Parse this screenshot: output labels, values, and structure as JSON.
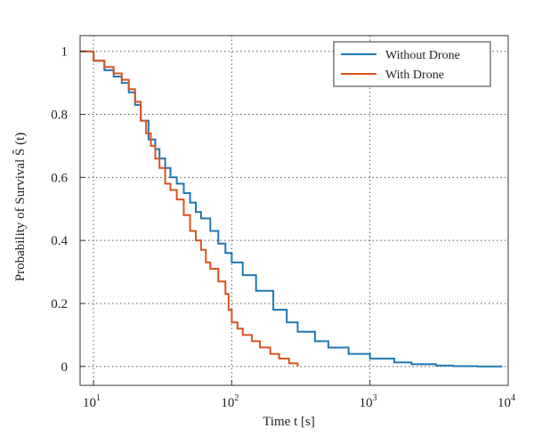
{
  "chart_data": {
    "type": "line",
    "step": true,
    "xscale": "log",
    "xlabel": "Time t [s]",
    "ylabel": "Probability of Survival Ŝ (t)",
    "xlim": [
      8,
      10000
    ],
    "ylim": [
      -0.06,
      1.05
    ],
    "xticks": [
      {
        "value": 10,
        "base": "10",
        "exp": "1"
      },
      {
        "value": 100,
        "base": "10",
        "exp": "2"
      },
      {
        "value": 1000,
        "base": "10",
        "exp": "3"
      },
      {
        "value": 10000,
        "base": "10",
        "exp": "4"
      }
    ],
    "yticks": [
      {
        "value": 0,
        "label": "0"
      },
      {
        "value": 0.2,
        "label": "0.2"
      },
      {
        "value": 0.4,
        "label": "0.4"
      },
      {
        "value": 0.6,
        "label": "0.6"
      },
      {
        "value": 0.8,
        "label": "0.8"
      },
      {
        "value": 1,
        "label": "1"
      }
    ],
    "grid": true,
    "legend_position": "top-right",
    "series": [
      {
        "name": "Without Drone",
        "color": "#1f77b4",
        "x": [
          8,
          10,
          12,
          14,
          16,
          18,
          20,
          22,
          25,
          28,
          30,
          33,
          36,
          40,
          45,
          50,
          55,
          60,
          70,
          80,
          90,
          100,
          120,
          150,
          200,
          250,
          300,
          400,
          500,
          700,
          1000,
          1500,
          2000,
          3000,
          4000,
          6000,
          9000
        ],
        "y": [
          1.0,
          0.97,
          0.94,
          0.92,
          0.9,
          0.87,
          0.83,
          0.78,
          0.72,
          0.69,
          0.66,
          0.63,
          0.6,
          0.58,
          0.55,
          0.52,
          0.49,
          0.47,
          0.43,
          0.39,
          0.36,
          0.33,
          0.29,
          0.24,
          0.18,
          0.14,
          0.11,
          0.08,
          0.06,
          0.04,
          0.025,
          0.013,
          0.007,
          0.003,
          0.001,
          0.0003,
          0
        ]
      },
      {
        "name": "With Drone",
        "color": "#d9541e",
        "x": [
          8,
          10,
          12,
          14,
          16,
          18,
          20,
          22,
          24,
          26,
          28,
          30,
          33,
          36,
          40,
          45,
          50,
          55,
          60,
          65,
          70,
          80,
          90,
          95,
          100,
          110,
          120,
          140,
          160,
          190,
          220,
          260,
          300
        ],
        "y": [
          1.0,
          0.97,
          0.95,
          0.93,
          0.91,
          0.88,
          0.84,
          0.78,
          0.74,
          0.7,
          0.66,
          0.63,
          0.58,
          0.56,
          0.53,
          0.48,
          0.43,
          0.4,
          0.37,
          0.33,
          0.31,
          0.27,
          0.23,
          0.18,
          0.14,
          0.12,
          0.1,
          0.08,
          0.06,
          0.04,
          0.025,
          0.01,
          0
        ]
      }
    ]
  }
}
